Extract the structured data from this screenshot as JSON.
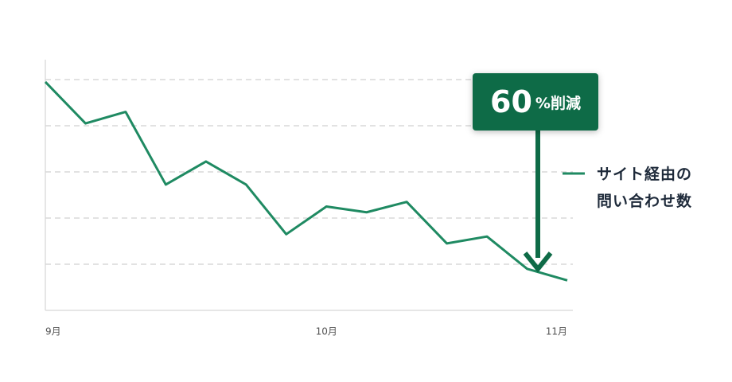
{
  "chart_data": {
    "type": "line",
    "categories": [
      "9月",
      null,
      null,
      null,
      null,
      null,
      null,
      "10月",
      null,
      null,
      null,
      null,
      null,
      "11月"
    ],
    "series": [
      {
        "name": "サイト経由の問い合わせ数",
        "color": "#1f8a62",
        "values": [
          99,
          81,
          86,
          54.5,
          64.5,
          54.5,
          33,
          45,
          42.5,
          47,
          29,
          32,
          18,
          13
        ]
      }
    ],
    "ylim": [
      0,
      110
    ],
    "yticks": [
      20,
      40,
      60,
      80,
      100
    ],
    "grid": true,
    "annotation": {
      "number": 60,
      "suffix": "%削減",
      "color": "#0e6b47"
    }
  }
}
